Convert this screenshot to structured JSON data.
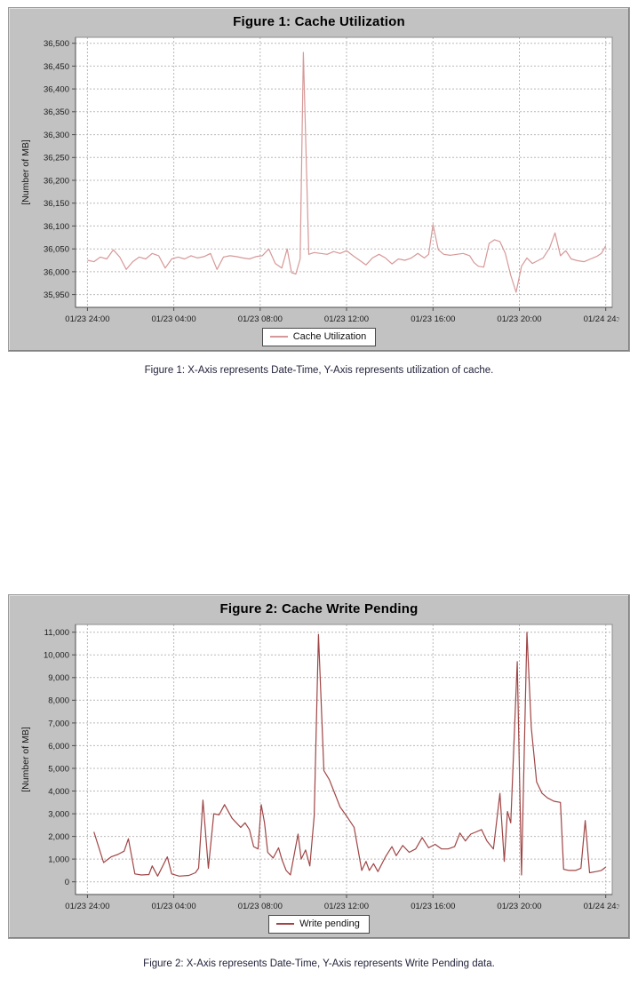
{
  "chart_data": [
    {
      "type": "line",
      "title": "Figure 1: Cache Utilization",
      "caption": "Figure 1: X-Axis represents Date-Time, Y-Axis represents utilization of cache.",
      "ylabel": "[Number of MB]",
      "legend": "Cache Utilization",
      "legend_position": "bottom",
      "grid": true,
      "line_color": "#d79898",
      "panel_color": "#c2c2c2",
      "ylim": [
        35950,
        36500
      ],
      "ytick_step": 50,
      "ylim_render": [
        35922,
        36513
      ],
      "xlim_render": [
        -0.55,
        24.3
      ],
      "xtick_hours": [
        0,
        4,
        8,
        12,
        16,
        20,
        24
      ],
      "xtick_labels": [
        "01/23 24:00",
        "01/23 04:00",
        "01/23 08:00",
        "01/23 12:00",
        "01/23 16:00",
        "01/23 20:00",
        "01/24 24:00"
      ],
      "x": [
        0,
        0.3,
        0.6,
        0.9,
        1.2,
        1.5,
        1.8,
        2.1,
        2.4,
        2.7,
        3,
        3.3,
        3.6,
        3.9,
        4.2,
        4.5,
        4.8,
        5.1,
        5.4,
        5.7,
        6,
        6.3,
        6.6,
        6.9,
        7.2,
        7.5,
        7.8,
        8.1,
        8.4,
        8.7,
        9,
        9.25,
        9.45,
        9.65,
        9.85,
        10,
        10.25,
        10.5,
        10.8,
        11.1,
        11.4,
        11.7,
        12,
        12.3,
        12.6,
        12.9,
        13.2,
        13.5,
        13.8,
        14.1,
        14.4,
        14.7,
        15,
        15.3,
        15.6,
        15.8,
        16,
        16.25,
        16.5,
        16.8,
        17.1,
        17.4,
        17.7,
        17.9,
        18.1,
        18.35,
        18.6,
        18.85,
        19.1,
        19.35,
        19.6,
        19.85,
        20.1,
        20.35,
        20.6,
        20.85,
        21.1,
        21.4,
        21.65,
        21.9,
        22.15,
        22.4,
        22.7,
        23,
        23.3,
        23.6,
        23.8,
        24
      ],
      "y": [
        36025,
        36022,
        36032,
        36028,
        36048,
        36032,
        36005,
        36022,
        36032,
        36028,
        36040,
        36035,
        36008,
        36028,
        36032,
        36028,
        36035,
        36030,
        36033,
        36040,
        36005,
        36032,
        36035,
        36033,
        36030,
        36028,
        36033,
        36035,
        36050,
        36018,
        36008,
        36050,
        35998,
        35995,
        36028,
        36480,
        36038,
        36042,
        36040,
        36038,
        36044,
        36040,
        36046,
        36035,
        36025,
        36015,
        36030,
        36038,
        36030,
        36017,
        36028,
        36025,
        36030,
        36040,
        36030,
        36038,
        36103,
        36048,
        36038,
        36036,
        36038,
        36040,
        36035,
        36020,
        36012,
        36010,
        36062,
        36070,
        36066,
        36040,
        35992,
        35955,
        36012,
        36030,
        36018,
        36024,
        36030,
        36052,
        36085,
        36035,
        36046,
        36028,
        36024,
        36022,
        36028,
        36034,
        36040,
        36057
      ]
    },
    {
      "type": "line",
      "title": "Figure 2: Cache Write Pending",
      "caption": "Figure 2: X-Axis represents Date-Time, Y-Axis represents Write Pending data.",
      "ylabel": "[Number of MB]",
      "legend": "Write pending",
      "legend_position": "bottom",
      "grid": true,
      "line_color": "#a04545",
      "panel_color": "#c2c2c2",
      "ylim": [
        0,
        11000
      ],
      "ytick_step": 1000,
      "ylim_render": [
        -560,
        11340
      ],
      "xlim_render": [
        -0.55,
        24.3
      ],
      "xtick_hours": [
        0,
        4,
        8,
        12,
        16,
        20,
        24
      ],
      "xtick_labels": [
        "01/23 24:00",
        "01/23 04:00",
        "01/23 08:00",
        "01/23 12:00",
        "01/23 16:00",
        "01/23 20:00",
        "01/24 24:00"
      ],
      "x": [
        0.3,
        0.5,
        0.75,
        1.1,
        1.4,
        1.7,
        1.9,
        2.2,
        2.5,
        2.85,
        3,
        3.25,
        3.7,
        3.9,
        4.25,
        4.7,
        5,
        5.15,
        5.35,
        5.6,
        5.85,
        6.1,
        6.35,
        6.7,
        7.1,
        7.3,
        7.5,
        7.7,
        7.9,
        8.05,
        8.2,
        8.35,
        8.6,
        8.85,
        9,
        9.2,
        9.4,
        9.75,
        9.9,
        10.1,
        10.3,
        10.5,
        10.7,
        10.95,
        11.2,
        11.45,
        11.7,
        12,
        12.35,
        12.7,
        12.9,
        13.05,
        13.25,
        13.45,
        13.8,
        14.1,
        14.3,
        14.6,
        14.9,
        15.2,
        15.5,
        15.8,
        16.1,
        16.4,
        16.7,
        17,
        17.25,
        17.5,
        17.75,
        18,
        18.25,
        18.5,
        18.8,
        19.1,
        19.3,
        19.45,
        19.6,
        19.9,
        20.1,
        20.35,
        20.55,
        20.8,
        21.05,
        21.3,
        21.6,
        21.9,
        22.05,
        22.3,
        22.6,
        22.85,
        23.05,
        23.25,
        23.55,
        23.8,
        24
      ],
      "y": [
        2200,
        1600,
        850,
        1100,
        1200,
        1350,
        1900,
        350,
        300,
        320,
        700,
        250,
        1100,
        350,
        250,
        280,
        400,
        600,
        3600,
        600,
        3000,
        2950,
        3400,
        2800,
        2400,
        2600,
        2300,
        1550,
        1450,
        3400,
        2600,
        1300,
        1050,
        1500,
        1000,
        500,
        300,
        2100,
        1000,
        1400,
        700,
        2900,
        10900,
        4900,
        4500,
        3900,
        3300,
        2900,
        2400,
        500,
        900,
        500,
        800,
        450,
        1100,
        1550,
        1150,
        1600,
        1300,
        1450,
        1950,
        1500,
        1650,
        1450,
        1450,
        1550,
        2150,
        1800,
        2100,
        2200,
        2300,
        1800,
        1450,
        3900,
        900,
        3100,
        2600,
        9700,
        300,
        11000,
        6800,
        4400,
        3900,
        3700,
        3550,
        3500,
        550,
        500,
        500,
        600,
        2700,
        400,
        450,
        500,
        650
      ]
    }
  ]
}
